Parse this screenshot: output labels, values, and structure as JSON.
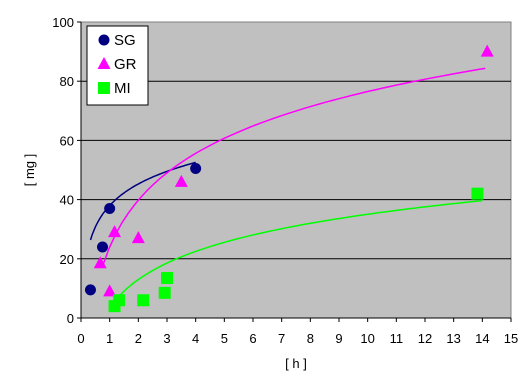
{
  "chart_data": {
    "type": "scatter",
    "title": "",
    "xlabel": "[ h ]",
    "ylabel": "[ mg ]",
    "xlim": [
      0,
      15
    ],
    "ylim": [
      0,
      100
    ],
    "x_ticks": [
      "0",
      "1",
      "2",
      "3",
      "4",
      "5",
      "6",
      "7",
      "8",
      "9",
      "10",
      "11",
      "12",
      "13",
      "14",
      "15"
    ],
    "y_ticks": [
      "0",
      "20",
      "40",
      "60",
      "80",
      "100"
    ],
    "grid": "horizontal",
    "plot_background": "#c0c0c0",
    "legend_position": "top-left",
    "series": [
      {
        "name": "SG",
        "marker": "circle",
        "color": "#000080",
        "points": [
          [
            0.33,
            9.5
          ],
          [
            0.75,
            24
          ],
          [
            1.0,
            37
          ],
          [
            4.0,
            50.5
          ]
        ],
        "trend": {
          "type": "logarithmic",
          "a": 38.0,
          "b": 10.5,
          "x_range": [
            0.33,
            4.0
          ]
        }
      },
      {
        "name": "GR",
        "marker": "triangle",
        "color": "#ff00ff",
        "points": [
          [
            0.67,
            18.5
          ],
          [
            1.0,
            9
          ],
          [
            1.17,
            29
          ],
          [
            2.0,
            27
          ],
          [
            3.5,
            46
          ],
          [
            14.17,
            90
          ]
        ],
        "trend": {
          "type": "logarithmic",
          "a": 24.0,
          "b": 22.8,
          "x_range": [
            0.75,
            14.1
          ]
        }
      },
      {
        "name": "MI",
        "marker": "square",
        "color": "#00ff00",
        "points": [
          [
            1.17,
            4
          ],
          [
            1.33,
            6
          ],
          [
            2.17,
            6
          ],
          [
            2.92,
            8.5
          ],
          [
            3.0,
            13.5
          ],
          [
            13.83,
            42
          ]
        ],
        "trend": {
          "type": "logarithmic",
          "a": 3.5,
          "b": 13.7,
          "x_range": [
            1.17,
            14.0
          ]
        }
      }
    ]
  }
}
